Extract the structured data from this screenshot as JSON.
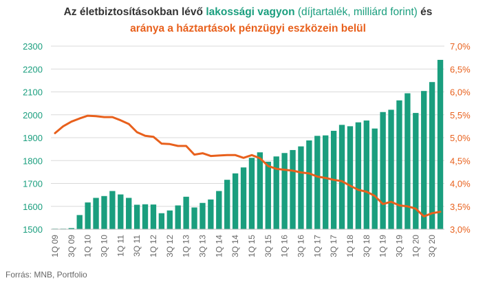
{
  "title": {
    "part1": "Az életbiztosításokban lévő ",
    "part2": "lakossági vagyon",
    "part3": " (díjtartalék, milliárd forint)",
    "part4": " és",
    "line2": "aránya a háztartások pénzügyi eszközein belül"
  },
  "source": "Forrás: MNB, Portfolio",
  "colors": {
    "bar": "#1a9e7e",
    "line": "#e8601c",
    "left_axis": "#1a9e7e",
    "right_axis": "#e8601c",
    "grid": "#d9d9d9"
  },
  "chart_data": {
    "type": "bar",
    "categories": [
      "1Q 09",
      "2Q 09",
      "3Q 09",
      "4Q 09",
      "1Q 10",
      "2Q 10",
      "3Q 10",
      "4Q 10",
      "1Q 11",
      "2Q 11",
      "3Q 11",
      "4Q 11",
      "1Q 12",
      "2Q 12",
      "3Q 12",
      "4Q 12",
      "1Q 13",
      "2Q 13",
      "3Q 13",
      "4Q 13",
      "1Q 14",
      "2Q 14",
      "3Q 14",
      "4Q 14",
      "1Q 15",
      "2Q 15",
      "3Q 15",
      "4Q 15",
      "1Q 16",
      "2Q 16",
      "3Q 16",
      "4Q 16",
      "1Q 17",
      "2Q 17",
      "3Q 17",
      "4Q 17",
      "1Q 18",
      "2Q 18",
      "3Q 18",
      "4Q 18",
      "1Q 19",
      "2Q 19",
      "3Q 19",
      "4Q 19",
      "1Q 20",
      "2Q 20",
      "3Q 20",
      "4Q 20"
    ],
    "tick_labels": [
      "1Q 09",
      "3Q 09",
      "1Q 10",
      "3Q 10",
      "1Q 11",
      "3Q 11",
      "1Q 12",
      "3Q 12",
      "1Q 13",
      "3Q 13",
      "1Q 14",
      "3Q 14",
      "1Q 15",
      "3Q 15",
      "1Q 16",
      "3Q 16",
      "1Q 17",
      "3Q 17",
      "1Q 18",
      "3Q 18",
      "1Q 19",
      "3Q 19",
      "1Q 20",
      "3Q 20"
    ],
    "series": [
      {
        "type": "bar",
        "axis": "left",
        "values": [
          1500,
          1500,
          1505,
          1562,
          1617,
          1637,
          1645,
          1667,
          1652,
          1637,
          1607,
          1609,
          1608,
          1570,
          1582,
          1604,
          1642,
          1595,
          1615,
          1630,
          1667,
          1716,
          1744,
          1770,
          1812,
          1836,
          1795,
          1818,
          1833,
          1846,
          1862,
          1888,
          1908,
          1910,
          1930,
          1956,
          1950,
          1967,
          1975,
          1940,
          2012,
          2022,
          2063,
          2094,
          2008,
          2104,
          2143,
          2240
        ]
      },
      {
        "type": "line",
        "axis": "right",
        "values": [
          5.1,
          5.25,
          5.35,
          5.42,
          5.48,
          5.47,
          5.45,
          5.45,
          5.38,
          5.3,
          5.12,
          5.04,
          5.02,
          4.87,
          4.86,
          4.82,
          4.82,
          4.63,
          4.66,
          4.6,
          4.61,
          4.62,
          4.62,
          4.56,
          4.62,
          4.55,
          4.38,
          4.32,
          4.3,
          4.28,
          4.24,
          4.22,
          4.15,
          4.12,
          4.08,
          4.05,
          3.95,
          3.86,
          3.82,
          3.73,
          3.55,
          3.6,
          3.52,
          3.5,
          3.45,
          3.28,
          3.35,
          3.38
        ]
      }
    ],
    "left_axis": {
      "min": 1500,
      "max": 2300,
      "ticks": [
        "1500",
        "1600",
        "1700",
        "1800",
        "1900",
        "2000",
        "2100",
        "2200",
        "2300"
      ]
    },
    "right_axis": {
      "min": 3.0,
      "max": 7.0,
      "ticks": [
        "3,0%",
        "3,5%",
        "4,0%",
        "4,5%",
        "5,0%",
        "5,5%",
        "6,0%",
        "6,5%",
        "7,0%"
      ]
    },
    "grid": true
  }
}
